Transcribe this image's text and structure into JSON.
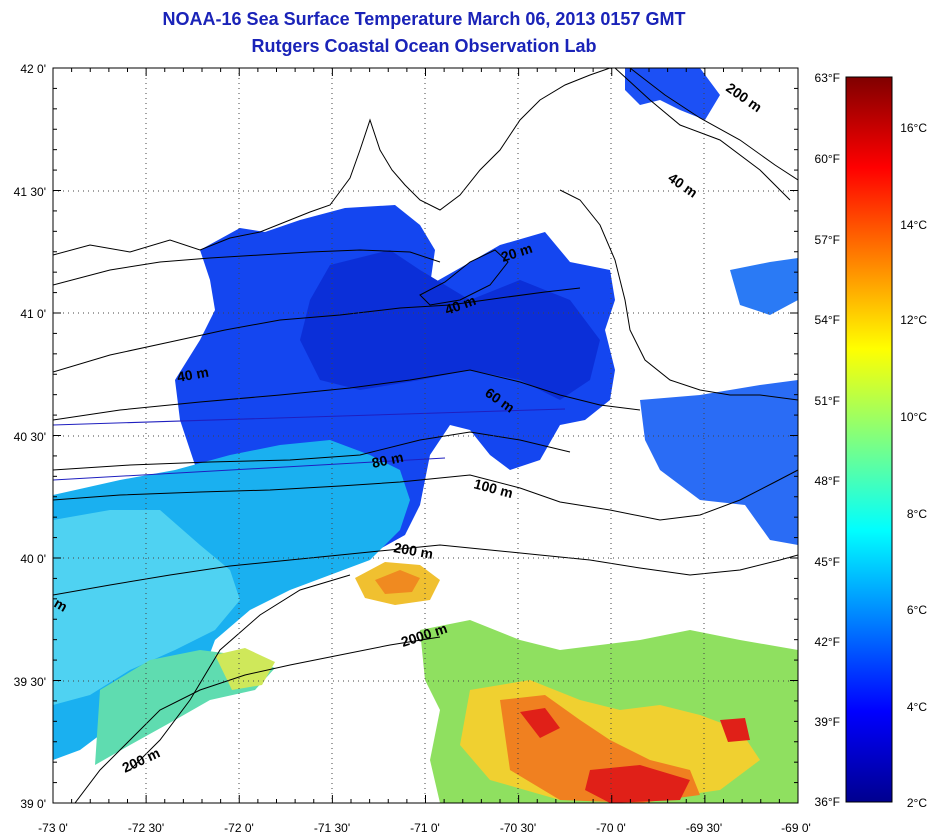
{
  "header": {
    "title": "NOAA-16 Sea Surface Temperature March 06, 2013 0157 GMT",
    "subtitle": "Rutgers Coastal Ocean Observation Lab"
  },
  "map": {
    "lon_labels": [
      "-73 0'",
      "-72 30'",
      "-72 0'",
      "-71 30'",
      "-71 0'",
      "-70 30'",
      "-70 0'",
      "-69 30'",
      "-69 0'"
    ],
    "lat_labels": [
      "42 0'",
      "41 30'",
      "41 0'",
      "40 30'",
      "40 0'",
      "39 30'",
      "39 0'"
    ],
    "contour_labels": [
      "20 m",
      "40 m",
      "40 m",
      "60 m",
      "80 m",
      "100 m",
      "200 m",
      "200 m",
      "200 m",
      "2000 m",
      "40 m",
      "m"
    ],
    "colors": {
      "title": "#1a23b8",
      "land": "#ffffff",
      "contour": "#000000",
      "track": "#1f1fbf"
    }
  },
  "colorbar": {
    "fahrenheit_labels": [
      "63°F",
      "60°F",
      "57°F",
      "54°F",
      "51°F",
      "48°F",
      "45°F",
      "42°F",
      "39°F",
      "36°F"
    ],
    "celsius_labels": [
      "16°C",
      "14°C",
      "12°C",
      "10°C",
      "8°C",
      "6°C",
      "4°C",
      "2°C"
    ],
    "range_celsius": [
      2,
      17.2
    ],
    "colormap": "jet"
  }
}
